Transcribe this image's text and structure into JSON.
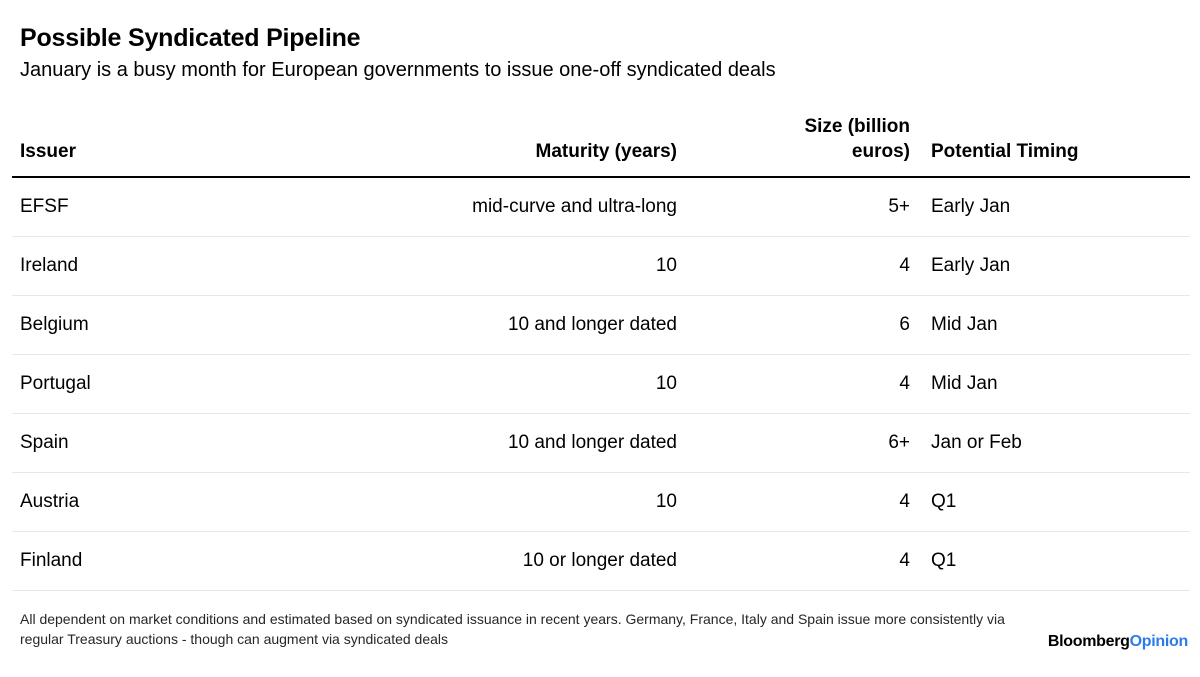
{
  "chart_data": {
    "type": "table",
    "title": "Possible Syndicated Pipeline",
    "subtitle": "January is a busy month for European governments to issue one-off syndicated deals",
    "columns": [
      "Issuer",
      "Maturity (years)",
      "Size (billion euros)",
      "Potential Timing"
    ],
    "column_alignments": [
      "left",
      "right",
      "right",
      "left"
    ],
    "rows": [
      [
        "EFSF",
        "mid-curve and ultra-long",
        "5+",
        "Early Jan"
      ],
      [
        "Ireland",
        "10",
        "4",
        "Early Jan"
      ],
      [
        "Belgium",
        "10 and longer dated",
        "6",
        "Mid Jan"
      ],
      [
        "Portugal",
        "10",
        "4",
        "Mid Jan"
      ],
      [
        "Spain",
        "10 and longer dated",
        "6+",
        "Jan or Feb"
      ],
      [
        "Austria",
        "10",
        "4",
        "Q1"
      ],
      [
        "Finland",
        "10 or longer dated",
        "4",
        "Q1"
      ]
    ],
    "footnote": "All dependent on market conditions and estimated based on syndicated issuance in recent years. Germany, France, Italy and Spain issue more consistently via regular Treasury auctions - though can augment via syndicated deals",
    "grid": "horizontal-rules-only"
  },
  "branding": {
    "primary": "Bloomberg",
    "secondary": "Opinion",
    "secondary_color": "#2b7ce9"
  },
  "colors": {
    "background": "#ffffff",
    "text": "#000000",
    "heavy_rule": "#000000",
    "light_rule": "#e7e7e7",
    "footnote_text": "#262626"
  }
}
